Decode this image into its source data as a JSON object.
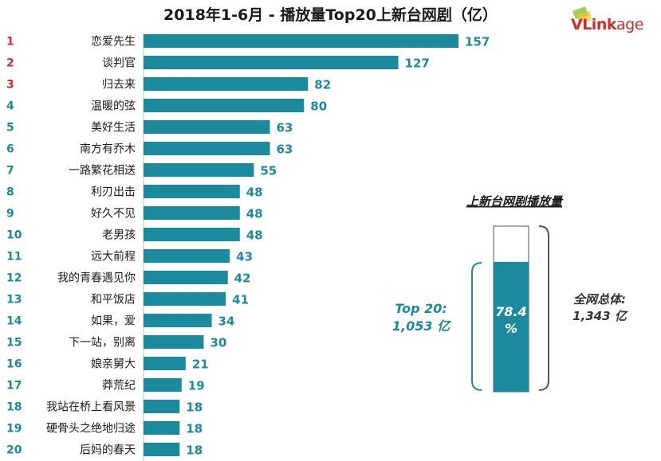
{
  "title": {
    "prefix": "2018年1-6月 - 播放量Top20上新",
    "underlined": "台网剧",
    "suffix": "（亿）"
  },
  "logo": {
    "text_bold": "VLink",
    "text_light": "age"
  },
  "colors": {
    "bar": "#1b8a9c",
    "value_text": "#1b8a9c",
    "rank_top3": "#d42b2b",
    "rank_other": "#1b8a9c"
  },
  "chart_data": {
    "type": "bar",
    "orientation": "horizontal",
    "ranks": [
      "1",
      "2",
      "3",
      "4",
      "5",
      "6",
      "7",
      "8",
      "9",
      "10",
      "11",
      "12",
      "13",
      "14",
      "15",
      "16",
      "17",
      "18",
      "19",
      "20"
    ],
    "categories": [
      "恋爱先生",
      "谈判官",
      "归去来",
      "温暖的弦",
      "美好生活",
      "南方有乔木",
      "一路繁花相送",
      "利刃出击",
      "好久不见",
      "老男孩",
      "远大前程",
      "我的青春遇见你",
      "和平饭店",
      "如果，爱",
      "下一站，别离",
      "娘亲舅大",
      "莽荒纪",
      "我站在桥上看风景",
      "硬骨头之绝地归途",
      "后妈的春天"
    ],
    "values": [
      157,
      127,
      82,
      80,
      63,
      63,
      55,
      48,
      48,
      48,
      43,
      42,
      41,
      34,
      30,
      21,
      19,
      18,
      18,
      18
    ],
    "xlim": [
      0,
      157
    ]
  },
  "summary": {
    "title": "上新台网剧播放量",
    "top20_label": "Top 20:",
    "top20_value": "1,053 亿",
    "percent_value": "78.4",
    "percent_sign": "%",
    "share_fraction": 0.784,
    "total_label": "全网总体:",
    "total_value": "1,343 亿"
  }
}
